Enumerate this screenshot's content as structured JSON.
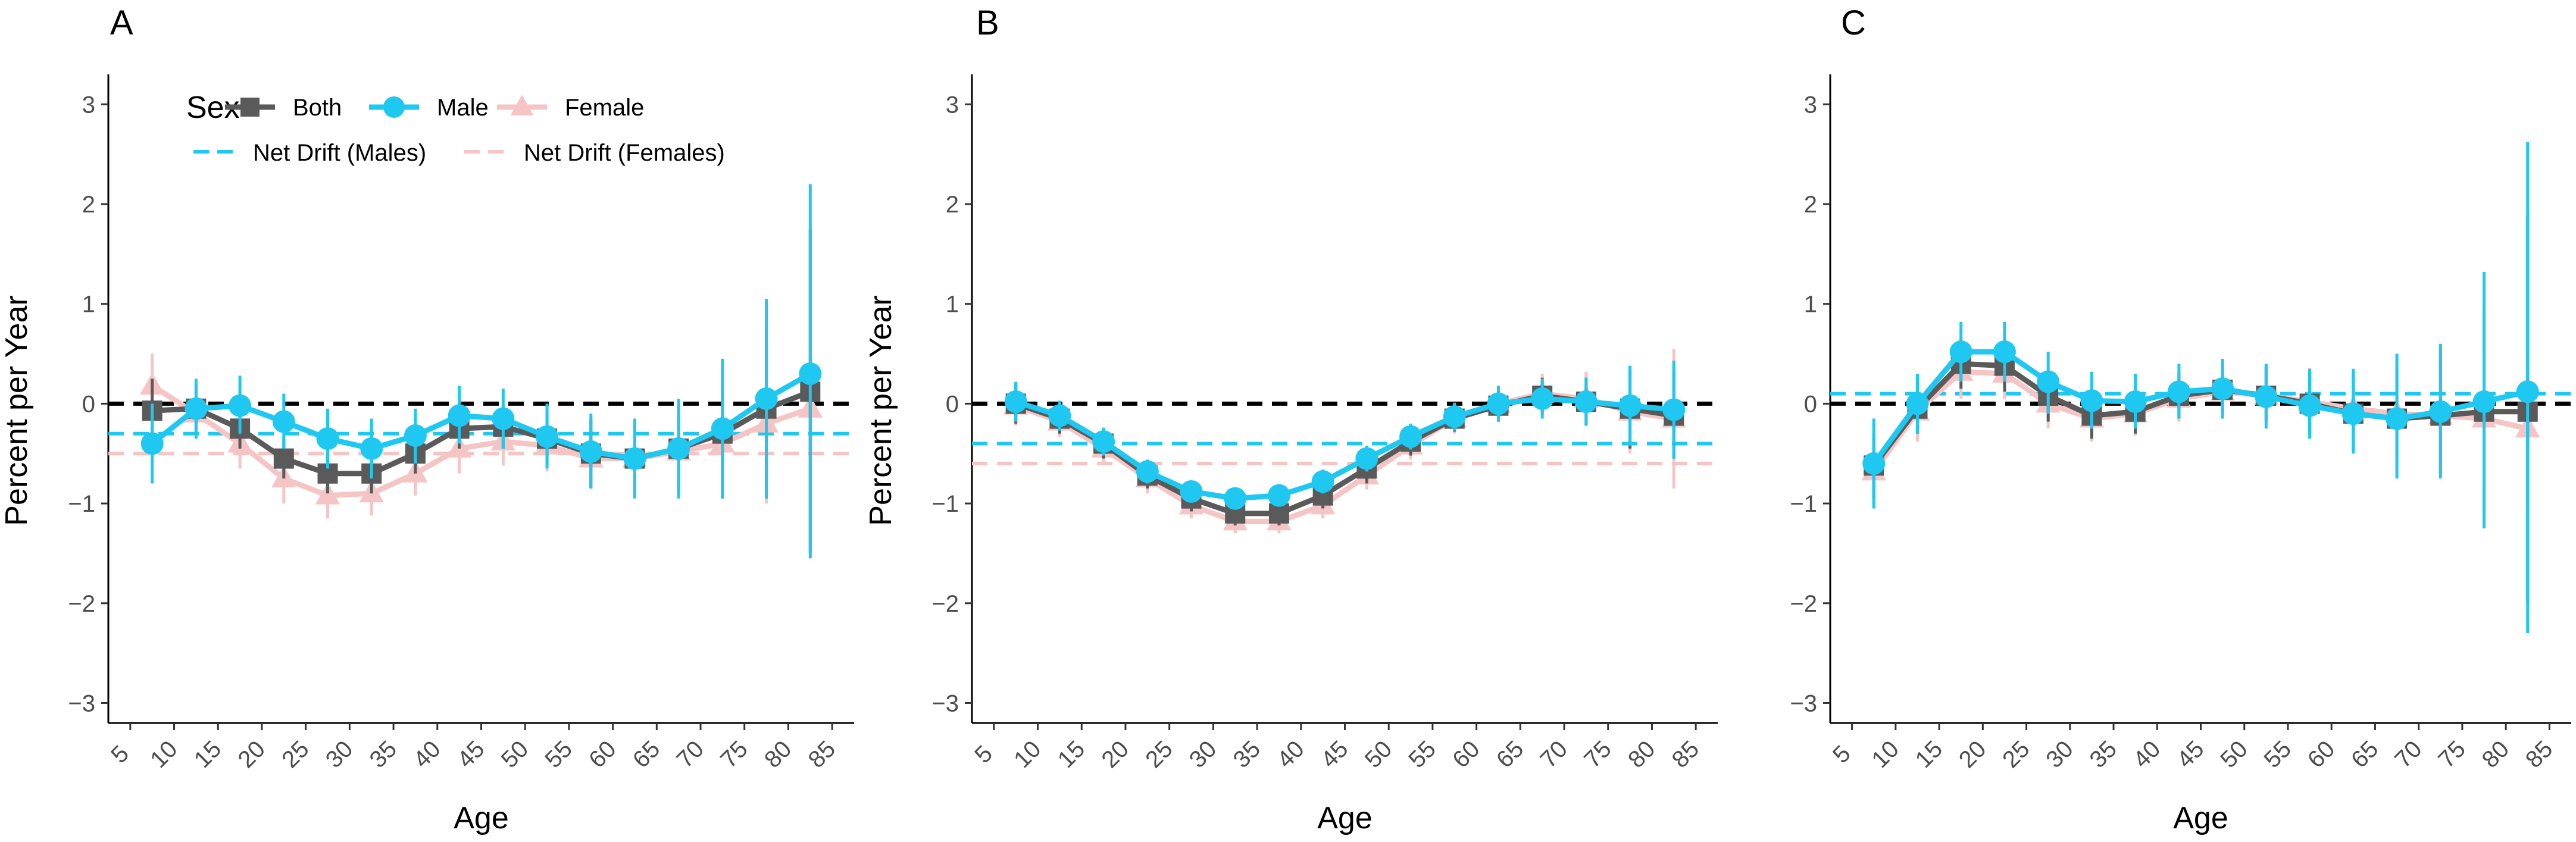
{
  "legend": {
    "title": "Sex",
    "items": [
      {
        "label": "Both",
        "color": "#5a5a5a",
        "shape": "square"
      },
      {
        "label": "Male",
        "color": "#1fc8f0",
        "shape": "circle"
      },
      {
        "label": "Female",
        "color": "#f5c4c4",
        "shape": "triangle"
      }
    ],
    "drift_items": [
      {
        "label": "Net Drift (Males)",
        "color": "#1fc8f0"
      },
      {
        "label": "Net Drift (Females)",
        "color": "#f5c4c4"
      }
    ]
  },
  "colors": {
    "both": "#5a5a5a",
    "male": "#1fc8f0",
    "female": "#f5c4c4",
    "reference": "#000000"
  },
  "chart_data": [
    {
      "type": "line",
      "panel": "A",
      "xlabel": "Age",
      "ylabel": "Percent per Year",
      "xticks": [
        5,
        10,
        15,
        20,
        25,
        30,
        35,
        40,
        45,
        50,
        55,
        60,
        65,
        70,
        75,
        80,
        85
      ],
      "yticks": [
        -3,
        -2,
        -1,
        0,
        1,
        2,
        3
      ],
      "xlim": [
        2.5,
        87.5
      ],
      "ylim": [
        -3.2,
        3.3
      ],
      "x": [
        7.5,
        12.5,
        17.5,
        22.5,
        27.5,
        32.5,
        37.5,
        42.5,
        47.5,
        52.5,
        57.5,
        62.5,
        67.5,
        72.5,
        77.5,
        82.5
      ],
      "reference_line": 0,
      "net_drift": {
        "male": -0.3,
        "female": -0.5
      },
      "series": [
        {
          "name": "Both",
          "values": [
            -0.07,
            -0.05,
            -0.25,
            -0.55,
            -0.7,
            -0.7,
            -0.5,
            -0.25,
            -0.23,
            -0.35,
            -0.5,
            -0.55,
            -0.45,
            -0.3,
            -0.05,
            0.12
          ],
          "lower": [
            -0.45,
            -0.3,
            -0.45,
            -0.75,
            -0.9,
            -0.9,
            -0.7,
            -0.45,
            -0.45,
            -0.6,
            -0.85,
            -0.9,
            -0.9,
            -0.95,
            -0.9,
            -1.5
          ],
          "upper": [
            0.25,
            0.2,
            -0.05,
            -0.35,
            -0.5,
            -0.5,
            -0.3,
            -0.05,
            -0.01,
            -0.1,
            -0.15,
            -0.2,
            0.0,
            0.35,
            0.8,
            1.75
          ]
        },
        {
          "name": "Male",
          "values": [
            -0.4,
            -0.05,
            -0.02,
            -0.18,
            -0.35,
            -0.45,
            -0.32,
            -0.12,
            -0.15,
            -0.33,
            -0.48,
            -0.55,
            -0.45,
            -0.25,
            0.05,
            0.3
          ],
          "lower": [
            -0.8,
            -0.35,
            -0.3,
            -0.45,
            -0.65,
            -0.75,
            -0.6,
            -0.4,
            -0.45,
            -0.65,
            -0.85,
            -0.95,
            -0.95,
            -0.95,
            -0.95,
            -1.55
          ],
          "upper": [
            0.0,
            0.25,
            0.28,
            0.1,
            -0.05,
            -0.15,
            -0.05,
            0.18,
            0.15,
            0.0,
            -0.1,
            -0.15,
            0.05,
            0.45,
            1.05,
            2.2
          ]
        },
        {
          "name": "Female",
          "values": [
            0.18,
            -0.1,
            -0.4,
            -0.75,
            -0.92,
            -0.9,
            -0.7,
            -0.45,
            -0.38,
            -0.42,
            -0.55,
            -0.55,
            -0.48,
            -0.4,
            -0.2,
            -0.05
          ],
          "lower": [
            -0.12,
            -0.35,
            -0.65,
            -1.0,
            -1.15,
            -1.12,
            -0.92,
            -0.7,
            -0.62,
            -0.68,
            -0.85,
            -0.9,
            -0.85,
            -0.95,
            -1.0,
            -0.5
          ],
          "upper": [
            0.5,
            0.15,
            -0.15,
            -0.5,
            -0.7,
            -0.68,
            -0.48,
            -0.2,
            -0.14,
            -0.16,
            -0.25,
            -0.2,
            -0.1,
            0.15,
            0.6,
            0.4
          ]
        }
      ]
    },
    {
      "type": "line",
      "panel": "B",
      "xlabel": "Age",
      "ylabel": "Percent per Year",
      "xticks": [
        5,
        10,
        15,
        20,
        25,
        30,
        35,
        40,
        45,
        50,
        55,
        60,
        65,
        70,
        75,
        80,
        85
      ],
      "yticks": [
        -3,
        -2,
        -1,
        0,
        1,
        2,
        3
      ],
      "xlim": [
        2.5,
        87.5
      ],
      "ylim": [
        -3.2,
        3.3
      ],
      "x": [
        7.5,
        12.5,
        17.5,
        22.5,
        27.5,
        32.5,
        37.5,
        42.5,
        47.5,
        52.5,
        57.5,
        62.5,
        67.5,
        72.5,
        77.5,
        82.5
      ],
      "reference_line": 0,
      "net_drift": {
        "male": -0.4,
        "female": -0.6
      },
      "series": [
        {
          "name": "Both",
          "values": [
            0.0,
            -0.15,
            -0.4,
            -0.72,
            -0.95,
            -1.1,
            -1.1,
            -0.92,
            -0.65,
            -0.38,
            -0.15,
            -0.02,
            0.08,
            0.02,
            -0.05,
            -0.12
          ],
          "lower": [
            -0.2,
            -0.3,
            -0.55,
            -0.85,
            -1.08,
            -1.22,
            -1.22,
            -1.05,
            -0.8,
            -0.52,
            -0.28,
            -0.18,
            -0.1,
            -0.22,
            -0.45,
            -0.55
          ],
          "upper": [
            0.2,
            0.0,
            -0.25,
            -0.58,
            -0.82,
            -0.98,
            -0.98,
            -0.8,
            -0.5,
            -0.24,
            -0.02,
            0.14,
            0.26,
            0.26,
            0.35,
            0.32
          ]
        },
        {
          "name": "Male",
          "values": [
            0.02,
            -0.12,
            -0.38,
            -0.68,
            -0.88,
            -0.95,
            -0.92,
            -0.78,
            -0.55,
            -0.33,
            -0.13,
            0.0,
            0.05,
            0.02,
            -0.02,
            -0.06
          ],
          "lower": [
            -0.18,
            -0.27,
            -0.52,
            -0.8,
            -0.98,
            -1.05,
            -1.03,
            -0.9,
            -0.68,
            -0.46,
            -0.27,
            -0.18,
            -0.15,
            -0.22,
            -0.42,
            -0.55
          ],
          "upper": [
            0.22,
            0.03,
            -0.24,
            -0.56,
            -0.78,
            -0.85,
            -0.81,
            -0.66,
            -0.42,
            -0.2,
            0.01,
            0.18,
            0.25,
            0.26,
            0.38,
            0.43
          ]
        },
        {
          "name": "Female",
          "values": [
            -0.02,
            -0.18,
            -0.45,
            -0.75,
            -1.02,
            -1.18,
            -1.18,
            -1.02,
            -0.72,
            -0.42,
            -0.15,
            0.0,
            0.1,
            0.05,
            -0.08,
            -0.15
          ],
          "lower": [
            -0.22,
            -0.33,
            -0.6,
            -0.9,
            -1.15,
            -1.3,
            -1.3,
            -1.15,
            -0.86,
            -0.56,
            -0.3,
            -0.18,
            -0.1,
            -0.22,
            -0.5,
            -0.85
          ],
          "upper": [
            0.18,
            -0.03,
            -0.3,
            -0.6,
            -0.89,
            -1.06,
            -1.06,
            -0.89,
            -0.58,
            -0.28,
            0.0,
            0.18,
            0.3,
            0.32,
            0.34,
            0.55
          ]
        }
      ]
    },
    {
      "type": "line",
      "panel": "C",
      "xlabel": "Age",
      "ylabel": "",
      "xticks": [
        5,
        10,
        15,
        20,
        25,
        30,
        35,
        40,
        45,
        50,
        55,
        60,
        65,
        70,
        75,
        80,
        85
      ],
      "yticks": [
        -3,
        -2,
        -1,
        0,
        1,
        2,
        3
      ],
      "xlim": [
        2.5,
        87.5
      ],
      "ylim": [
        -3.2,
        3.3
      ],
      "x": [
        7.5,
        12.5,
        17.5,
        22.5,
        27.5,
        32.5,
        37.5,
        42.5,
        47.5,
        52.5,
        57.5,
        62.5,
        67.5,
        72.5,
        77.5,
        82.5
      ],
      "reference_line": 0,
      "net_drift": {
        "male": 0.1,
        "female": 0.0
      },
      "series": [
        {
          "name": "Both",
          "values": [
            -0.62,
            -0.05,
            0.4,
            0.38,
            0.08,
            -0.12,
            -0.08,
            0.08,
            0.14,
            0.08,
            0.0,
            -0.1,
            -0.15,
            -0.12,
            -0.08,
            -0.08
          ],
          "lower": [
            -0.95,
            -0.3,
            0.15,
            0.12,
            -0.18,
            -0.35,
            -0.3,
            -0.15,
            -0.1,
            -0.18,
            -0.3,
            -0.45,
            -0.6,
            -0.7,
            -1.1,
            -2.0
          ],
          "upper": [
            -0.3,
            0.22,
            0.65,
            0.62,
            0.32,
            0.12,
            0.12,
            0.32,
            0.38,
            0.38,
            0.32,
            0.3,
            0.35,
            0.55,
            0.95,
            1.9
          ]
        },
        {
          "name": "Male",
          "values": [
            -0.6,
            0.0,
            0.52,
            0.52,
            0.22,
            0.03,
            0.02,
            0.12,
            0.15,
            0.07,
            -0.02,
            -0.1,
            -0.15,
            -0.08,
            0.02,
            0.12
          ],
          "lower": [
            -1.05,
            -0.3,
            0.22,
            0.22,
            -0.1,
            -0.25,
            -0.25,
            -0.15,
            -0.15,
            -0.25,
            -0.35,
            -0.5,
            -0.75,
            -0.75,
            -1.25,
            -2.3
          ],
          "upper": [
            -0.15,
            0.3,
            0.82,
            0.82,
            0.52,
            0.32,
            0.3,
            0.4,
            0.45,
            0.4,
            0.35,
            0.35,
            0.5,
            0.6,
            1.32,
            2.62
          ]
        },
        {
          "name": "Female",
          "values": [
            -0.68,
            -0.08,
            0.32,
            0.3,
            0.0,
            -0.15,
            -0.1,
            0.05,
            0.12,
            0.08,
            0.02,
            -0.05,
            -0.1,
            -0.12,
            -0.15,
            -0.25
          ],
          "lower": [
            -1.0,
            -0.38,
            0.05,
            0.05,
            -0.25,
            -0.38,
            -0.32,
            -0.18,
            -0.12,
            -0.18,
            -0.3,
            -0.4,
            -0.55,
            -0.65,
            -0.85,
            -1.0
          ],
          "upper": [
            -0.35,
            0.22,
            0.6,
            0.55,
            0.25,
            0.08,
            0.12,
            0.28,
            0.36,
            0.35,
            0.36,
            0.32,
            0.35,
            0.4,
            0.55,
            0.5
          ]
        }
      ]
    }
  ]
}
